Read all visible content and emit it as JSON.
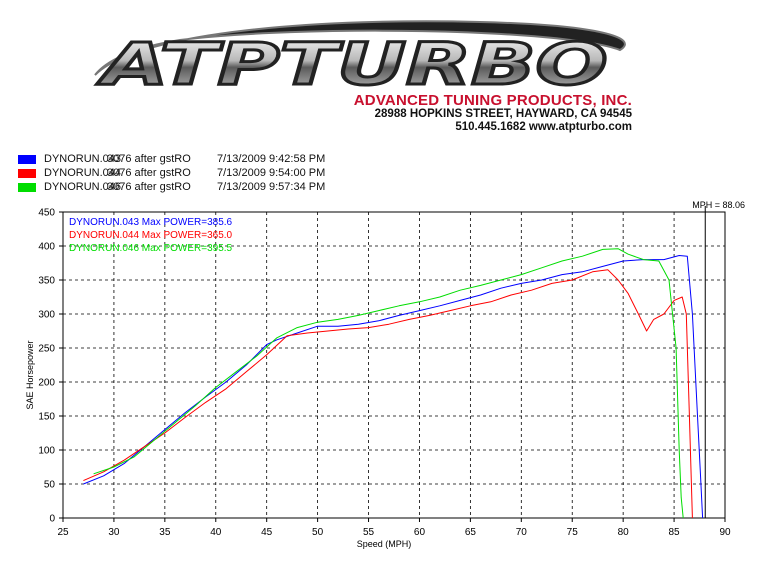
{
  "header": {
    "company_name": "ADVANCED TUNING PRODUCTS, INC.",
    "address": "28988 HOPKINS STREET, HAYWARD, CA 94545",
    "contact": "510.445.1682 www.atpturbo.com",
    "logo_text": "ATPTURBO"
  },
  "legend": [
    {
      "name": "DYNORUN.043",
      "desc": "3076 after gstRO",
      "date": "7/13/2009 9:42:58 PM",
      "color": "#0000ff"
    },
    {
      "name": "DYNORUN.044",
      "desc": "3076 after gstRO",
      "date": "7/13/2009 9:54:00 PM",
      "color": "#ff0000"
    },
    {
      "name": "DYNORUN.046",
      "desc": "3076 after gstRO",
      "date": "7/13/2009 9:57:34 PM",
      "color": "#00dd00"
    }
  ],
  "chart_data": {
    "type": "line",
    "xlabel": "Speed (MPH)",
    "ylabel": "SAE Horsepower",
    "xlim": [
      25,
      90
    ],
    "ylim": [
      0,
      450
    ],
    "xticks": [
      25,
      30,
      35,
      40,
      45,
      50,
      55,
      60,
      65,
      70,
      75,
      80,
      85,
      90
    ],
    "yticks": [
      0,
      50,
      100,
      150,
      200,
      250,
      300,
      350,
      400,
      450
    ],
    "grid": true,
    "cursor": {
      "label": "MPH = 88.06",
      "x": 88.06
    },
    "max_labels": [
      {
        "text": "DYNORUN.043  Max POWER=385.6",
        "color": "#0000ff"
      },
      {
        "text": "DYNORUN.044  Max POWER=365.0",
        "color": "#ff0000"
      },
      {
        "text": "DYNORUN.046  Max POWER=395.5",
        "color": "#00dd00"
      }
    ],
    "series": [
      {
        "name": "DYNORUN.043",
        "color": "#0000ff",
        "x": [
          27,
          29,
          31,
          33,
          35,
          37,
          39,
          41,
          43,
          45,
          46,
          48,
          50,
          52,
          54,
          56,
          58,
          60,
          62,
          64,
          66,
          68,
          70,
          72,
          74,
          76,
          78,
          80,
          82,
          84,
          85.5,
          86.3,
          86.8,
          87.3,
          87.6,
          87.8
        ],
        "y": [
          50,
          62,
          80,
          105,
          130,
          155,
          178,
          200,
          225,
          255,
          262,
          272,
          282,
          282,
          285,
          290,
          298,
          305,
          312,
          320,
          328,
          338,
          345,
          350,
          358,
          362,
          370,
          378,
          380,
          380,
          386,
          385,
          300,
          150,
          60,
          0
        ]
      },
      {
        "name": "DYNORUN.044",
        "color": "#ff0000",
        "x": [
          27,
          29,
          31,
          33,
          35,
          37,
          39,
          41,
          43,
          45,
          47,
          49,
          51,
          53,
          55,
          57,
          59,
          61,
          63,
          65,
          67,
          69,
          71,
          73,
          75,
          77,
          78.5,
          79.5,
          80.5,
          81.5,
          82.3,
          83,
          84,
          85,
          85.8,
          86.2,
          86.5,
          86.8
        ],
        "y": [
          55,
          68,
          85,
          105,
          125,
          148,
          170,
          190,
          215,
          240,
          268,
          272,
          275,
          278,
          280,
          285,
          292,
          298,
          305,
          312,
          318,
          328,
          335,
          345,
          350,
          362,
          365,
          350,
          330,
          300,
          275,
          292,
          300,
          320,
          325,
          300,
          150,
          0
        ]
      },
      {
        "name": "DYNORUN.046",
        "color": "#00dd00",
        "x": [
          28,
          30,
          32,
          34,
          36,
          38,
          40,
          42,
          44,
          46,
          48,
          50,
          52,
          54,
          56,
          58,
          60,
          62,
          64,
          66,
          68,
          70,
          72,
          74,
          76,
          78,
          79.5,
          80.5,
          82,
          83.5,
          84.5,
          85.2,
          85.5,
          85.7,
          85.9
        ],
        "y": [
          65,
          75,
          90,
          115,
          140,
          165,
          192,
          215,
          238,
          265,
          280,
          288,
          292,
          298,
          305,
          312,
          318,
          325,
          335,
          342,
          350,
          358,
          368,
          378,
          385,
          395,
          396,
          388,
          380,
          378,
          350,
          250,
          100,
          30,
          0
        ]
      }
    ]
  }
}
